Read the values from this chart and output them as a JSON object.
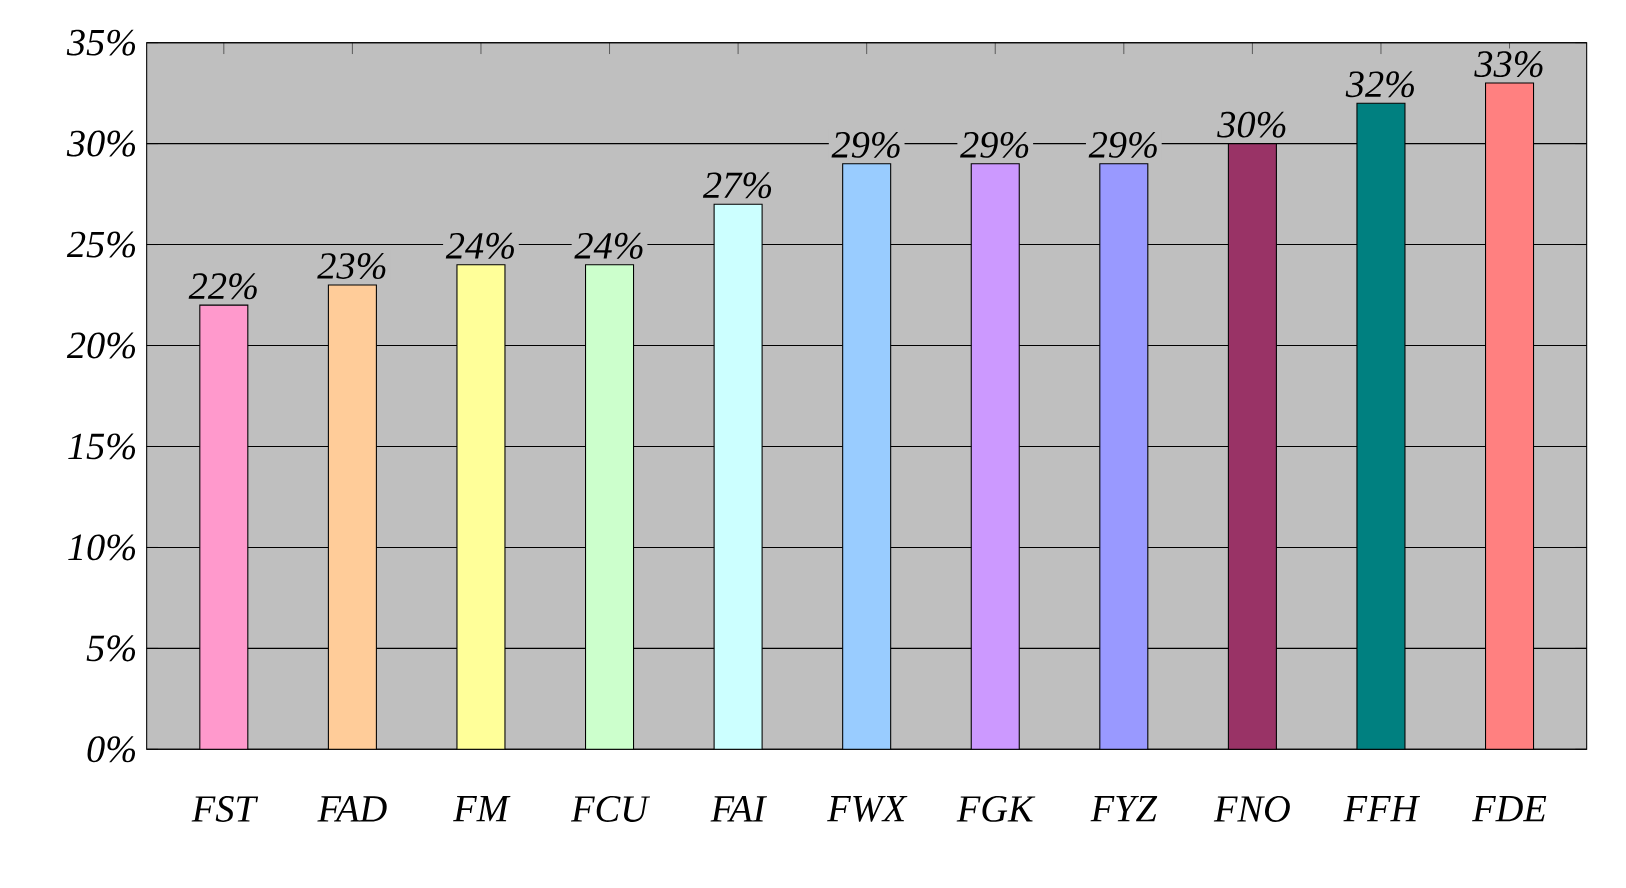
{
  "chart_data": {
    "type": "bar",
    "categories": [
      "FST",
      "FAD",
      "FM",
      "FCU",
      "FAI",
      "FWX",
      "FGK",
      "FYZ",
      "FNO",
      "FFH",
      "FDE"
    ],
    "values": [
      22,
      23,
      24,
      24,
      27,
      29,
      29,
      29,
      30,
      32,
      33
    ],
    "value_labels": [
      "22%",
      "23%",
      "24%",
      "24%",
      "27%",
      "29%",
      "29%",
      "29%",
      "30%",
      "32%",
      "33%"
    ],
    "colors": [
      "#ff99cc",
      "#ffcc99",
      "#ffff99",
      "#ccffcc",
      "#ccffff",
      "#99ccff",
      "#cc99ff",
      "#9999ff",
      "#993366",
      "#008080",
      "#ff8080"
    ],
    "ylim": [
      0,
      35
    ],
    "yticks": [
      {
        "value": 0,
        "label": "0%"
      },
      {
        "value": 5,
        "label": "5%"
      },
      {
        "value": 10,
        "label": "10%"
      },
      {
        "value": 15,
        "label": "15%"
      },
      {
        "value": 20,
        "label": "20%"
      },
      {
        "value": 25,
        "label": "25%"
      },
      {
        "value": 30,
        "label": "30%"
      },
      {
        "value": 35,
        "label": "35%"
      }
    ],
    "grid": "y"
  }
}
